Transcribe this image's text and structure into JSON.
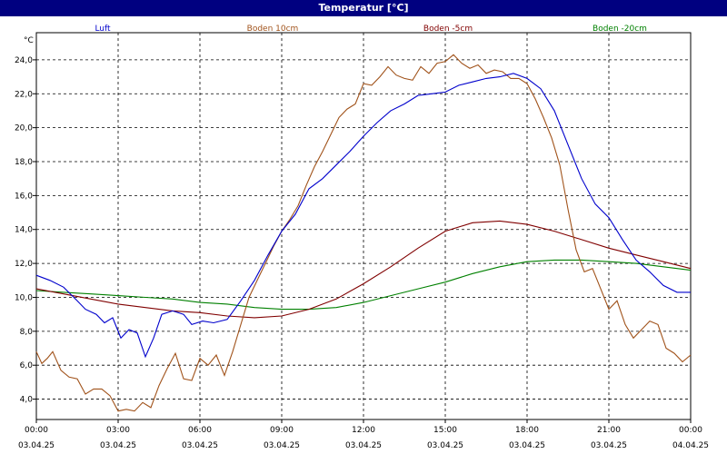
{
  "window": {
    "title": "Temperatur [°C]"
  },
  "chart_data": {
    "type": "line",
    "title": "Temperatur [°C]",
    "ylabel": "°C",
    "xlabel": "",
    "ylim": [
      2.8,
      25.6
    ],
    "xlim": [
      0,
      24
    ],
    "grid": true,
    "legend_position": "top",
    "y_ticks": [
      {
        "value": 4,
        "label": "4,0"
      },
      {
        "value": 6,
        "label": "6,0"
      },
      {
        "value": 8,
        "label": "8,0"
      },
      {
        "value": 10,
        "label": "10,0"
      },
      {
        "value": 12,
        "label": "12,0"
      },
      {
        "value": 14,
        "label": "14,0"
      },
      {
        "value": 16,
        "label": "16,0"
      },
      {
        "value": 18,
        "label": "18,0"
      },
      {
        "value": 20,
        "label": "20,0"
      },
      {
        "value": 22,
        "label": "22,0"
      },
      {
        "value": 24,
        "label": "24,0"
      }
    ],
    "x_ticks": [
      {
        "value": 0,
        "time": "00:00",
        "date": "03.04.25"
      },
      {
        "value": 3,
        "time": "03:00",
        "date": "03.04.25"
      },
      {
        "value": 6,
        "time": "06:00",
        "date": "03.04.25"
      },
      {
        "value": 9,
        "time": "09:00",
        "date": "03.04.25"
      },
      {
        "value": 12,
        "time": "12:00",
        "date": "03.04.25"
      },
      {
        "value": 15,
        "time": "15:00",
        "date": "03.04.25"
      },
      {
        "value": 18,
        "time": "18:00",
        "date": "03.04.25"
      },
      {
        "value": 21,
        "time": "21:00",
        "date": "03.04.25"
      },
      {
        "value": 24,
        "time": "00:00",
        "date": "04.04.25"
      }
    ],
    "series": [
      {
        "name": "Luft",
        "color": "#0000cc",
        "points": [
          [
            0,
            11.3
          ],
          [
            0.5,
            11.0
          ],
          [
            1.0,
            10.6
          ],
          [
            1.5,
            9.8
          ],
          [
            1.8,
            9.3
          ],
          [
            2.2,
            9.0
          ],
          [
            2.5,
            8.5
          ],
          [
            2.8,
            8.8
          ],
          [
            3.1,
            7.6
          ],
          [
            3.4,
            8.1
          ],
          [
            3.7,
            7.9
          ],
          [
            4.0,
            6.5
          ],
          [
            4.3,
            7.6
          ],
          [
            4.6,
            9.0
          ],
          [
            5.0,
            9.2
          ],
          [
            5.4,
            9.0
          ],
          [
            5.7,
            8.4
          ],
          [
            6.1,
            8.6
          ],
          [
            6.5,
            8.5
          ],
          [
            7.0,
            8.7
          ],
          [
            7.5,
            9.8
          ],
          [
            8.0,
            11.0
          ],
          [
            8.5,
            12.5
          ],
          [
            9.0,
            13.9
          ],
          [
            9.5,
            14.9
          ],
          [
            10.0,
            16.4
          ],
          [
            10.5,
            17.0
          ],
          [
            11.0,
            17.8
          ],
          [
            11.5,
            18.6
          ],
          [
            12.0,
            19.5
          ],
          [
            12.5,
            20.3
          ],
          [
            13.0,
            21.0
          ],
          [
            13.5,
            21.4
          ],
          [
            14.0,
            21.9
          ],
          [
            14.5,
            22.0
          ],
          [
            15.0,
            22.1
          ],
          [
            15.5,
            22.5
          ],
          [
            16.0,
            22.7
          ],
          [
            16.5,
            22.9
          ],
          [
            17.0,
            23.0
          ],
          [
            17.5,
            23.2
          ],
          [
            18.0,
            22.9
          ],
          [
            18.5,
            22.3
          ],
          [
            19.0,
            21.0
          ],
          [
            19.5,
            19.0
          ],
          [
            20.0,
            17.0
          ],
          [
            20.5,
            15.5
          ],
          [
            21.0,
            14.7
          ],
          [
            21.5,
            13.4
          ],
          [
            22.0,
            12.2
          ],
          [
            22.5,
            11.5
          ],
          [
            23.0,
            10.7
          ],
          [
            23.5,
            10.3
          ],
          [
            24.0,
            10.3
          ]
        ]
      },
      {
        "name": "Boden 10cm",
        "color": "#a0521a",
        "points": [
          [
            0,
            6.8
          ],
          [
            0.2,
            6.1
          ],
          [
            0.4,
            6.4
          ],
          [
            0.6,
            6.8
          ],
          [
            0.9,
            5.7
          ],
          [
            1.2,
            5.3
          ],
          [
            1.5,
            5.2
          ],
          [
            1.8,
            4.3
          ],
          [
            2.1,
            4.6
          ],
          [
            2.4,
            4.6
          ],
          [
            2.7,
            4.2
          ],
          [
            3.0,
            3.3
          ],
          [
            3.3,
            3.4
          ],
          [
            3.6,
            3.3
          ],
          [
            3.9,
            3.8
          ],
          [
            4.2,
            3.5
          ],
          [
            4.5,
            4.8
          ],
          [
            4.8,
            5.8
          ],
          [
            5.1,
            6.7
          ],
          [
            5.4,
            5.2
          ],
          [
            5.7,
            5.1
          ],
          [
            6.0,
            6.4
          ],
          [
            6.3,
            6.0
          ],
          [
            6.6,
            6.6
          ],
          [
            6.9,
            5.4
          ],
          [
            7.2,
            6.8
          ],
          [
            7.5,
            8.4
          ],
          [
            7.8,
            10.0
          ],
          [
            8.1,
            11.0
          ],
          [
            8.4,
            12.0
          ],
          [
            8.7,
            13.0
          ],
          [
            9.0,
            13.9
          ],
          [
            9.3,
            14.6
          ],
          [
            9.6,
            15.4
          ],
          [
            9.9,
            16.6
          ],
          [
            10.2,
            17.7
          ],
          [
            10.5,
            18.6
          ],
          [
            10.8,
            19.6
          ],
          [
            11.1,
            20.6
          ],
          [
            11.4,
            21.1
          ],
          [
            11.7,
            21.4
          ],
          [
            12.0,
            22.6
          ],
          [
            12.3,
            22.5
          ],
          [
            12.6,
            23.0
          ],
          [
            12.9,
            23.6
          ],
          [
            13.2,
            23.1
          ],
          [
            13.5,
            22.9
          ],
          [
            13.8,
            22.8
          ],
          [
            14.1,
            23.6
          ],
          [
            14.4,
            23.2
          ],
          [
            14.7,
            23.8
          ],
          [
            15.0,
            23.9
          ],
          [
            15.3,
            24.3
          ],
          [
            15.6,
            23.8
          ],
          [
            15.9,
            23.5
          ],
          [
            16.2,
            23.7
          ],
          [
            16.5,
            23.2
          ],
          [
            16.8,
            23.4
          ],
          [
            17.1,
            23.3
          ],
          [
            17.4,
            22.9
          ],
          [
            17.7,
            22.9
          ],
          [
            18.0,
            22.6
          ],
          [
            18.3,
            21.7
          ],
          [
            18.6,
            20.6
          ],
          [
            18.9,
            19.4
          ],
          [
            19.2,
            17.8
          ],
          [
            19.5,
            15.2
          ],
          [
            19.8,
            12.8
          ],
          [
            20.1,
            11.5
          ],
          [
            20.4,
            11.7
          ],
          [
            20.7,
            10.5
          ],
          [
            21.0,
            9.3
          ],
          [
            21.3,
            9.8
          ],
          [
            21.6,
            8.4
          ],
          [
            21.9,
            7.6
          ],
          [
            22.2,
            8.1
          ],
          [
            22.5,
            8.6
          ],
          [
            22.8,
            8.4
          ],
          [
            23.1,
            7.0
          ],
          [
            23.4,
            6.7
          ],
          [
            23.7,
            6.2
          ],
          [
            24.0,
            6.6
          ]
        ]
      },
      {
        "name": "Boden -5cm",
        "color": "#800000",
        "points": [
          [
            0,
            10.5
          ],
          [
            1,
            10.2
          ],
          [
            2,
            9.9
          ],
          [
            3,
            9.6
          ],
          [
            4,
            9.4
          ],
          [
            5,
            9.2
          ],
          [
            6,
            9.1
          ],
          [
            7,
            8.9
          ],
          [
            8,
            8.8
          ],
          [
            9,
            8.9
          ],
          [
            10,
            9.3
          ],
          [
            11,
            9.9
          ],
          [
            12,
            10.8
          ],
          [
            13,
            11.8
          ],
          [
            14,
            12.9
          ],
          [
            15,
            13.9
          ],
          [
            16,
            14.4
          ],
          [
            17,
            14.5
          ],
          [
            18,
            14.3
          ],
          [
            19,
            13.9
          ],
          [
            20,
            13.4
          ],
          [
            21,
            12.9
          ],
          [
            22,
            12.5
          ],
          [
            23,
            12.1
          ],
          [
            24,
            11.7
          ]
        ]
      },
      {
        "name": "Boden -20cm",
        "color": "#008000",
        "points": [
          [
            0,
            10.4
          ],
          [
            1,
            10.3
          ],
          [
            2,
            10.2
          ],
          [
            3,
            10.1
          ],
          [
            4,
            10.0
          ],
          [
            5,
            9.9
          ],
          [
            6,
            9.7
          ],
          [
            7,
            9.6
          ],
          [
            8,
            9.4
          ],
          [
            9,
            9.3
          ],
          [
            10,
            9.3
          ],
          [
            11,
            9.4
          ],
          [
            12,
            9.7
          ],
          [
            13,
            10.1
          ],
          [
            14,
            10.5
          ],
          [
            15,
            10.9
          ],
          [
            16,
            11.4
          ],
          [
            17,
            11.8
          ],
          [
            18,
            12.1
          ],
          [
            19,
            12.2
          ],
          [
            20,
            12.2
          ],
          [
            21,
            12.1
          ],
          [
            22,
            12.0
          ],
          [
            23,
            11.8
          ],
          [
            24,
            11.6
          ]
        ]
      }
    ]
  }
}
